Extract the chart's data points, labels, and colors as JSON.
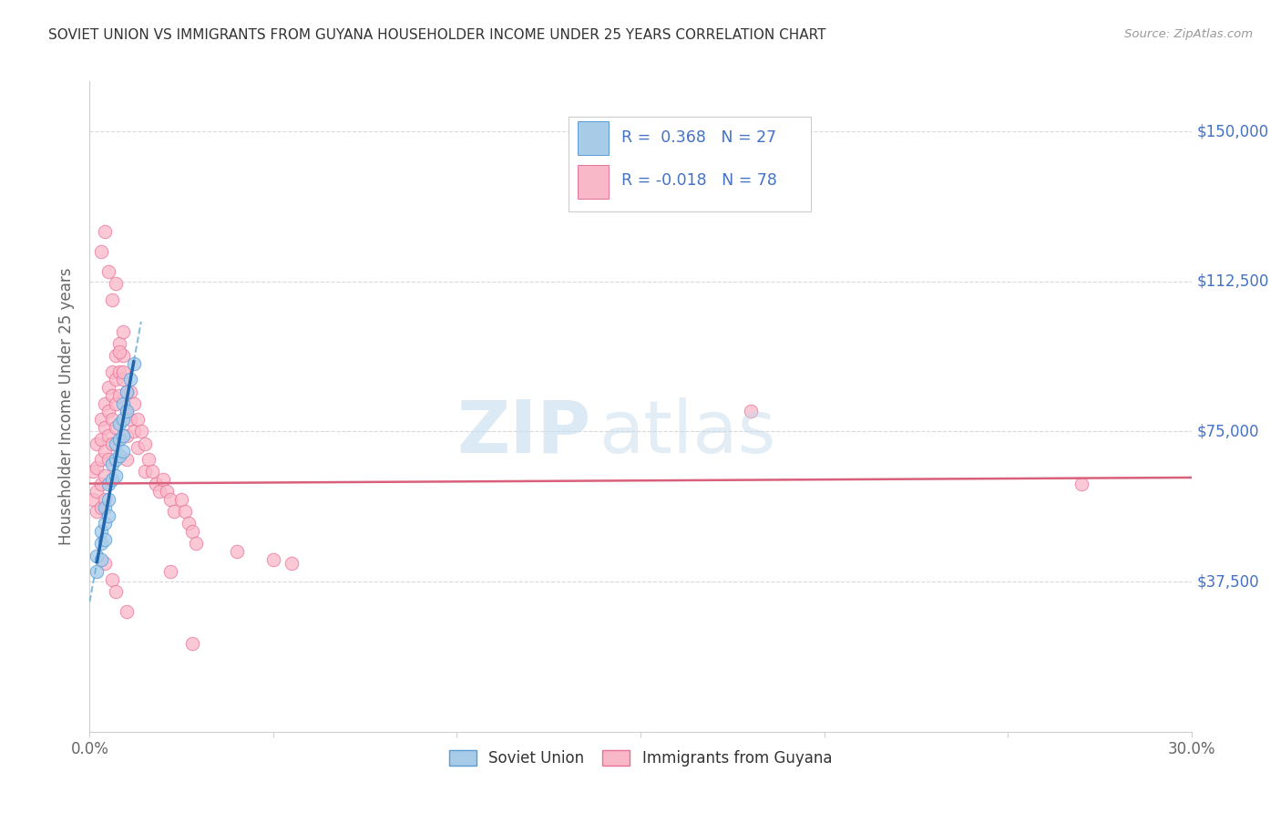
{
  "title": "SOVIET UNION VS IMMIGRANTS FROM GUYANA HOUSEHOLDER INCOME UNDER 25 YEARS CORRELATION CHART",
  "source": "Source: ZipAtlas.com",
  "ylabel": "Householder Income Under 25 years",
  "xlim": [
    0.0,
    0.3
  ],
  "ylim": [
    0,
    162500
  ],
  "x_ticks": [
    0.0,
    0.05,
    0.1,
    0.15,
    0.2,
    0.25,
    0.3
  ],
  "y_ticks": [
    0,
    37500,
    75000,
    112500,
    150000
  ],
  "y_tick_labels": [
    "",
    "$37,500",
    "$75,000",
    "$112,500",
    "$150,000"
  ],
  "legend_label1": "Soviet Union",
  "legend_label2": "Immigrants from Guyana",
  "blue_dot_color": "#a8cce8",
  "blue_edge_color": "#5b9bd5",
  "blue_dark": "#2166ac",
  "pink_dot_color": "#f9b8c8",
  "pink_edge_color": "#e87097",
  "red_line_color": "#d9607a",
  "blue_line_color": "#6aaed6",
  "blue_solid_color": "#2166ac",
  "ytick_color": "#4472c4",
  "grid_color": "#d0d0d0",
  "soviet_x": [
    0.002,
    0.002,
    0.003,
    0.003,
    0.003,
    0.004,
    0.004,
    0.004,
    0.005,
    0.005,
    0.005,
    0.006,
    0.006,
    0.007,
    0.007,
    0.007,
    0.008,
    0.008,
    0.008,
    0.009,
    0.009,
    0.009,
    0.009,
    0.01,
    0.01,
    0.011,
    0.012
  ],
  "soviet_y": [
    44000,
    40000,
    50000,
    47000,
    43000,
    56000,
    52000,
    48000,
    62000,
    58000,
    54000,
    67000,
    63000,
    72000,
    68000,
    64000,
    77000,
    73000,
    69000,
    82000,
    78000,
    74000,
    70000,
    85000,
    80000,
    88000,
    92000
  ],
  "guyana_x": [
    0.001,
    0.001,
    0.002,
    0.002,
    0.002,
    0.002,
    0.003,
    0.003,
    0.003,
    0.003,
    0.003,
    0.004,
    0.004,
    0.004,
    0.004,
    0.004,
    0.005,
    0.005,
    0.005,
    0.005,
    0.006,
    0.006,
    0.006,
    0.006,
    0.007,
    0.007,
    0.007,
    0.007,
    0.008,
    0.008,
    0.008,
    0.009,
    0.009,
    0.009,
    0.01,
    0.01,
    0.01,
    0.011,
    0.011,
    0.012,
    0.012,
    0.013,
    0.013,
    0.014,
    0.015,
    0.015,
    0.016,
    0.017,
    0.018,
    0.019,
    0.02,
    0.021,
    0.022,
    0.023,
    0.025,
    0.026,
    0.027,
    0.028,
    0.029,
    0.04,
    0.05,
    0.055,
    0.18,
    0.27,
    0.003,
    0.004,
    0.005,
    0.006,
    0.007,
    0.008,
    0.009,
    0.01,
    0.004,
    0.006,
    0.007,
    0.01,
    0.022,
    0.028
  ],
  "guyana_y": [
    65000,
    58000,
    72000,
    66000,
    60000,
    55000,
    78000,
    73000,
    68000,
    62000,
    56000,
    82000,
    76000,
    70000,
    64000,
    58000,
    86000,
    80000,
    74000,
    68000,
    90000,
    84000,
    78000,
    72000,
    94000,
    88000,
    82000,
    76000,
    97000,
    90000,
    84000,
    100000,
    94000,
    88000,
    80000,
    74000,
    68000,
    85000,
    78000,
    82000,
    75000,
    78000,
    71000,
    75000,
    72000,
    65000,
    68000,
    65000,
    62000,
    60000,
    63000,
    60000,
    58000,
    55000,
    58000,
    55000,
    52000,
    50000,
    47000,
    45000,
    43000,
    42000,
    80000,
    62000,
    120000,
    125000,
    115000,
    108000,
    112000,
    95000,
    90000,
    85000,
    42000,
    38000,
    35000,
    30000,
    40000,
    22000
  ]
}
